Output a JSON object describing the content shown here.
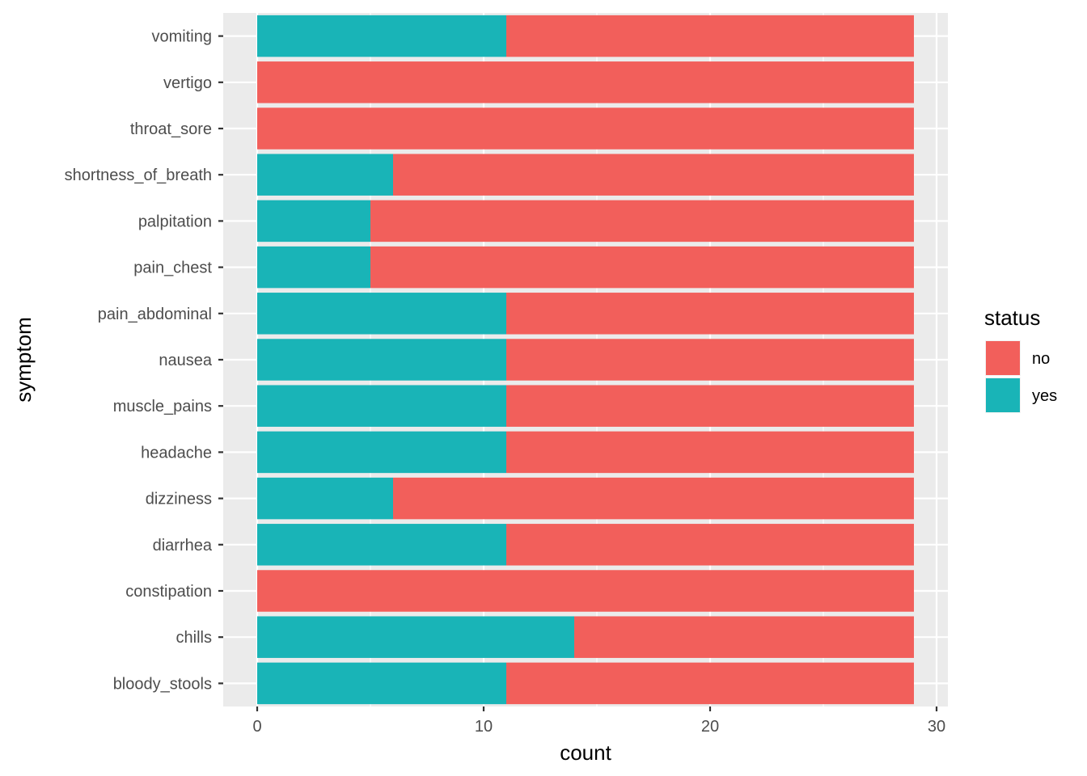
{
  "chart_data": {
    "type": "bar",
    "orientation": "horizontal",
    "stacked": true,
    "title": "",
    "xlabel": "count",
    "ylabel": "symptom",
    "xlim": [
      -1.5,
      30.5
    ],
    "x_ticks": [
      0,
      10,
      20,
      30
    ],
    "x_tick_labels": [
      "0",
      "10",
      "20",
      "30"
    ],
    "categories": [
      "bloody_stools",
      "chills",
      "constipation",
      "diarrhea",
      "dizziness",
      "headache",
      "muscle_pains",
      "nausea",
      "pain_abdominal",
      "pain_chest",
      "palpitation",
      "shortness_of_breath",
      "throat_sore",
      "vertigo",
      "vomiting"
    ],
    "series": [
      {
        "name": "yes",
        "color": "#19b4b7",
        "values": [
          11,
          14,
          0,
          11,
          6,
          11,
          11,
          11,
          11,
          5,
          5,
          6,
          0,
          0,
          11
        ]
      },
      {
        "name": "no",
        "color": "#f25f5b",
        "values": [
          18,
          15,
          29,
          18,
          23,
          18,
          18,
          18,
          18,
          24,
          24,
          23,
          29,
          29,
          18
        ]
      }
    ],
    "legend": {
      "title": "status",
      "position": "right",
      "entries": [
        {
          "label": "no",
          "color": "#f25f5b"
        },
        {
          "label": "yes",
          "color": "#19b4b7"
        }
      ]
    },
    "grid": true,
    "panel_background": "#ebebeb",
    "grid_color": "#ffffff"
  }
}
